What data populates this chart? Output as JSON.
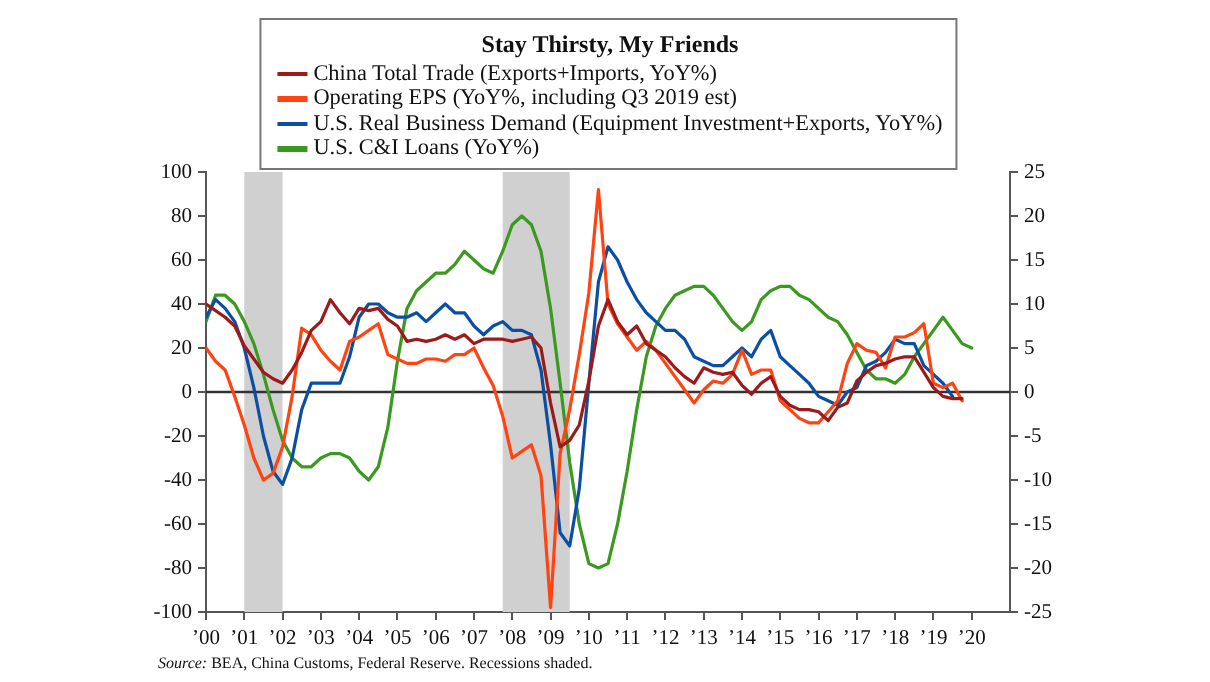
{
  "chart_data": {
    "type": "line",
    "title": "Stay Thirsty, My Friends",
    "x": [
      2000,
      2000.25,
      2000.5,
      2000.75,
      2001,
      2001.25,
      2001.5,
      2001.75,
      2002,
      2002.25,
      2002.5,
      2002.75,
      2003,
      2003.25,
      2003.5,
      2003.75,
      2004,
      2004.25,
      2004.5,
      2004.75,
      2005,
      2005.25,
      2005.5,
      2005.75,
      2006,
      2006.25,
      2006.5,
      2006.75,
      2007,
      2007.25,
      2007.5,
      2007.75,
      2008,
      2008.25,
      2008.5,
      2008.75,
      2009,
      2009.25,
      2009.5,
      2009.75,
      2010,
      2010.25,
      2010.5,
      2010.75,
      2011,
      2011.25,
      2011.5,
      2011.75,
      2012,
      2012.25,
      2012.5,
      2012.75,
      2013,
      2013.25,
      2013.5,
      2013.75,
      2014,
      2014.25,
      2014.5,
      2014.75,
      2015,
      2015.25,
      2015.5,
      2015.75,
      2016,
      2016.25,
      2016.5,
      2016.75,
      2017,
      2017.25,
      2017.5,
      2017.75,
      2018,
      2018.25,
      2018.5,
      2018.75,
      2019,
      2019.25,
      2019.5,
      2019.75,
      2020
    ],
    "series": [
      {
        "name": "China Total Trade (Exports+Imports, YoY%)",
        "color": "#9c1a1a",
        "values": [
          40,
          37,
          34,
          30,
          21,
          15,
          9,
          6,
          4,
          10,
          18,
          28,
          32,
          42,
          36,
          31,
          38,
          37,
          38,
          33,
          30,
          23,
          24,
          23,
          24,
          26,
          24,
          26,
          22,
          24,
          24,
          24,
          23,
          24,
          25,
          20,
          -5,
          -25,
          -22,
          -15,
          5,
          30,
          42,
          32,
          26,
          30,
          22,
          19,
          16,
          11,
          7,
          4,
          11,
          9,
          8,
          9,
          3,
          -1,
          4,
          7,
          -2,
          -6,
          -8,
          -8,
          -9,
          -13,
          -7,
          -5,
          5,
          9,
          12,
          13,
          15,
          16,
          16,
          9,
          2,
          -2,
          -3,
          -3,
          null
        ]
      },
      {
        "name": "Operating EPS (YoY%, including Q3 2019 est)",
        "color": "#ff4411",
        "values": [
          20,
          14,
          10,
          -2,
          -15,
          -30,
          -40,
          -37,
          -25,
          -2,
          29,
          26,
          19,
          14,
          10,
          23,
          25,
          28,
          31,
          17,
          15,
          13,
          13,
          15,
          15,
          14,
          17,
          17,
          20,
          11,
          3,
          -11,
          -30,
          -27,
          -24,
          -38,
          -98,
          -28,
          -8,
          17,
          45,
          92,
          40,
          31,
          25,
          19,
          23,
          19,
          13,
          7,
          1,
          -5,
          1,
          5,
          4,
          8,
          19,
          8,
          10,
          10,
          -4,
          -8,
          -12,
          -14,
          -14,
          -9,
          -4,
          13,
          22,
          19,
          18,
          11,
          25,
          25,
          27,
          31,
          4,
          2,
          4,
          -4,
          null
        ]
      },
      {
        "name": "U.S. Real Business Demand (Equipment Investment+Exports, YoY%)",
        "color": "#0b4ea2",
        "axis": "y2",
        "values": [
          8.5,
          10.5,
          9.5,
          8,
          5,
          0.5,
          -5,
          -9,
          -10.5,
          -7.5,
          -2,
          1,
          1,
          1,
          1,
          4,
          8.5,
          10,
          10,
          9,
          8.5,
          8.5,
          9,
          8,
          9,
          10,
          9,
          9,
          7.5,
          6.5,
          7.5,
          8,
          7,
          7,
          6.5,
          2.5,
          -6,
          -16,
          -17.5,
          -11,
          1,
          12.5,
          16.5,
          15,
          12.5,
          10.5,
          9,
          8,
          7,
          7,
          6,
          4,
          3.5,
          3,
          3,
          4,
          5,
          4,
          6,
          7,
          4,
          3,
          2,
          1,
          -0.5,
          -1,
          -1.5,
          0,
          0.5,
          3,
          3.5,
          4.5,
          6,
          5.5,
          5.5,
          3,
          2,
          1,
          -0.5,
          null,
          null
        ]
      },
      {
        "name": "U.S. C&I Loans (YoY%)",
        "color": "#3a9a1f",
        "axis": "y2",
        "values": [
          8,
          11,
          11,
          10,
          8,
          5.5,
          2,
          -2,
          -5.5,
          -7.5,
          -8.5,
          -8.5,
          -7.5,
          -7,
          -7,
          -7.5,
          -9,
          -10,
          -8.5,
          -4,
          3.5,
          9.5,
          11.5,
          12.5,
          13.5,
          13.5,
          14.5,
          16,
          15,
          14,
          13.5,
          16,
          19,
          20,
          19,
          16,
          9.5,
          1,
          -8,
          -15,
          -19.5,
          -20,
          -19.5,
          -15,
          -9,
          -2,
          4,
          7.5,
          9.5,
          11,
          11.5,
          12,
          12,
          11,
          9.5,
          8,
          7,
          8,
          10.5,
          11.5,
          12,
          12,
          11,
          10.5,
          9.5,
          8.5,
          8,
          6.5,
          4.5,
          2.5,
          1.5,
          1.5,
          1,
          2,
          4,
          5.5,
          7,
          8.5,
          7,
          5.5,
          5
        ]
      }
    ],
    "xlim": [
      2000,
      2021
    ],
    "xticks": [
      {
        "value": 2000,
        "label": "’00"
      },
      {
        "value": 2001,
        "label": "’01"
      },
      {
        "value": 2002,
        "label": "’02"
      },
      {
        "value": 2003,
        "label": "’03"
      },
      {
        "value": 2004,
        "label": "’04"
      },
      {
        "value": 2005,
        "label": "’05"
      },
      {
        "value": 2006,
        "label": "’06"
      },
      {
        "value": 2007,
        "label": "’07"
      },
      {
        "value": 2008,
        "label": "’08"
      },
      {
        "value": 2009,
        "label": "’09"
      },
      {
        "value": 2010,
        "label": "’10"
      },
      {
        "value": 2011,
        "label": "’11"
      },
      {
        "value": 2012,
        "label": "’12"
      },
      {
        "value": 2013,
        "label": "’13"
      },
      {
        "value": 2014,
        "label": "’14"
      },
      {
        "value": 2015,
        "label": "’15"
      },
      {
        "value": 2016,
        "label": "’16"
      },
      {
        "value": 2017,
        "label": "’17"
      },
      {
        "value": 2018,
        "label": "’18"
      },
      {
        "value": 2019,
        "label": "’19"
      },
      {
        "value": 2020,
        "label": "’20"
      }
    ],
    "ylim": [
      -100,
      100
    ],
    "yticks": [
      -100,
      -80,
      -60,
      -40,
      -20,
      0,
      20,
      40,
      60,
      80,
      100
    ],
    "y2lim": [
      -25,
      25
    ],
    "y2ticks": [
      -25,
      -20,
      -15,
      -10,
      -5,
      0,
      5,
      10,
      15,
      20,
      25
    ],
    "bands": [
      {
        "axis": "x",
        "from": 2001,
        "to": 2002,
        "color": "#d0d0d0"
      },
      {
        "axis": "x",
        "from": 2007.75,
        "to": 2009.5,
        "color": "#d0d0d0"
      }
    ],
    "ref_lines": [
      {
        "axis": "y",
        "value": 0,
        "color": "#333333"
      }
    ],
    "legend": "top",
    "marker": "none",
    "annotations": [
      "Source: BEA, China Customs, Federal Reserve. Recessions shaded."
    ]
  }
}
